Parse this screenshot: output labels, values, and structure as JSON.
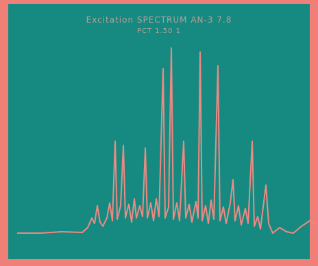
{
  "header": {
    "title": "Excitation SPECTRUM AN-3 7.8",
    "subtitle": "PCT 1.50 1"
  }
}
